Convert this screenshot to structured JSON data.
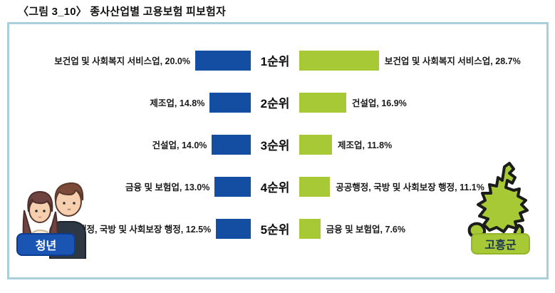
{
  "figure": {
    "title": "〈그림 3_10〉 종사산업별 고용보험 피보험자"
  },
  "groups": {
    "left": {
      "label": "청년"
    },
    "right": {
      "label": "고흥군"
    }
  },
  "rows": [
    {
      "rank": "1순위",
      "left_label": "보건업 및 사회복지 서비스업, 20.0%",
      "left_value": 20.0,
      "right_label": "보건업 및 사회복지 서비스업, 28.7%",
      "right_value": 28.7
    },
    {
      "rank": "2순위",
      "left_label": "제조업, 14.8%",
      "left_value": 14.8,
      "right_label": "건설업, 16.9%",
      "right_value": 16.9
    },
    {
      "rank": "3순위",
      "left_label": "건설업, 14.0%",
      "left_value": 14.0,
      "right_label": "제조업, 11.8%",
      "right_value": 11.8
    },
    {
      "rank": "4순위",
      "left_label": "금융 및 보험업, 13.0%",
      "left_value": 13.0,
      "right_label": "공공행정, 국방 및 사회보장 행정, 11.1%",
      "right_value": 11.1
    },
    {
      "rank": "5순위",
      "left_label": "공공행정, 국방 및 사회보장 행정, 12.5%",
      "left_value": 12.5,
      "right_label": "금융 및 보험업, 7.6%",
      "right_value": 7.6
    }
  ],
  "colors": {
    "youth_bar": "#134ea2",
    "county_bar": "#a6c935",
    "frame_border": "#a9cfd9",
    "youth_badge_bg": "#1b55b4",
    "county_badge_bg": "#a6c935",
    "county_badge_text": "#1c3553"
  },
  "chart_data": {
    "type": "bar",
    "title": "〈그림 3_10〉 종사산업별 고용보험 피보험자",
    "categories": [
      "1순위",
      "2순위",
      "3순위",
      "4순위",
      "5순위"
    ],
    "series": [
      {
        "name": "청년",
        "color": "#134ea2",
        "labels": [
          "보건업 및 사회복지 서비스업",
          "제조업",
          "건설업",
          "금융 및 보험업",
          "공공행정, 국방 및 사회보장 행정"
        ],
        "values": [
          20.0,
          14.8,
          14.0,
          13.0,
          12.5
        ]
      },
      {
        "name": "고흥군",
        "color": "#a6c935",
        "labels": [
          "보건업 및 사회복지 서비스업",
          "건설업",
          "제조업",
          "공공행정, 국방 및 사회보장 행정",
          "금융 및 보험업"
        ],
        "values": [
          28.7,
          16.9,
          11.8,
          11.1,
          7.6
        ]
      }
    ],
    "value_unit": "%",
    "layout": "diverging-ranked, youth bars right-aligned to center, county bars left-aligned from center",
    "grid": false,
    "legend_position": "bottom corners as badges"
  }
}
